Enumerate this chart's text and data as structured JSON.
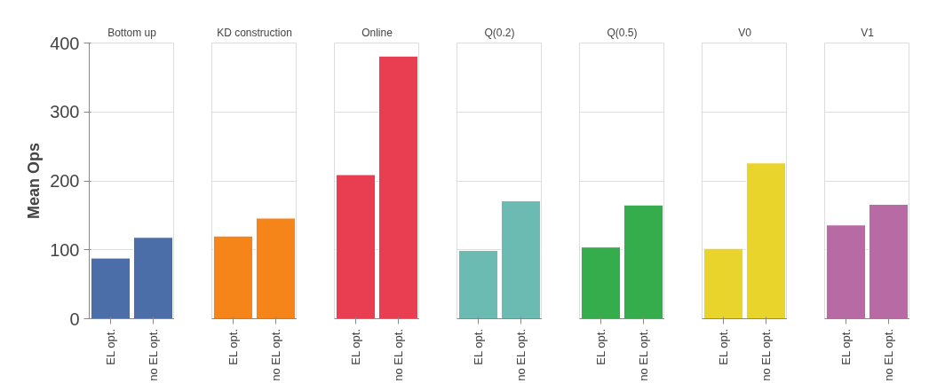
{
  "chart_data": [
    {
      "type": "bar",
      "title": "Bottom up",
      "ylabel": "Mean Ops",
      "categories": [
        "EL opt.",
        "no EL opt."
      ],
      "values": [
        88,
        118
      ],
      "color": "#4c6ea8",
      "ylim": [
        0,
        400
      ],
      "yticks": [
        0,
        100,
        200,
        300,
        400
      ],
      "grid": "y"
    },
    {
      "type": "bar",
      "title": "KD construction",
      "categories": [
        "EL opt.",
        "no EL opt."
      ],
      "values": [
        120,
        146
      ],
      "color": "#f58518",
      "ylim": [
        0,
        400
      ],
      "yticks": [
        0,
        100,
        200,
        300,
        400
      ],
      "grid": "y",
      "tick_labels": "x"
    },
    {
      "type": "bar",
      "title": "Online",
      "categories": [
        "EL opt.",
        "no EL opt."
      ],
      "values": [
        209,
        381
      ],
      "color": "#e93d52",
      "ylim": [
        0,
        400
      ],
      "yticks": [
        0,
        100,
        200,
        300,
        400
      ],
      "grid": "y",
      "tick_labels": "x"
    },
    {
      "type": "bar",
      "title": "Q(0.2)",
      "categories": [
        "EL opt.",
        "no EL opt."
      ],
      "values": [
        99,
        171
      ],
      "color": "#6cbbb3",
      "ylim": [
        0,
        400
      ],
      "yticks": [
        0,
        100,
        200,
        300,
        400
      ],
      "grid": "y",
      "tick_labels": "x"
    },
    {
      "type": "bar",
      "title": "Q(0.5)",
      "categories": [
        "EL opt.",
        "no EL opt."
      ],
      "values": [
        104,
        165
      ],
      "color": "#36ad4c",
      "ylim": [
        0,
        400
      ],
      "yticks": [
        0,
        100,
        200,
        300,
        400
      ],
      "grid": "y",
      "tick_labels": "x"
    },
    {
      "type": "bar",
      "title": "V0",
      "categories": [
        "EL opt.",
        "no EL opt."
      ],
      "values": [
        102,
        226
      ],
      "color": "#e8d42a",
      "ylim": [
        0,
        400
      ],
      "yticks": [
        0,
        100,
        200,
        300,
        400
      ],
      "grid": "y",
      "tick_labels": "x"
    },
    {
      "type": "bar",
      "title": "V1",
      "categories": [
        "EL opt.",
        "no EL opt."
      ],
      "values": [
        136,
        166
      ],
      "color": "#b76aa4",
      "ylim": [
        0,
        400
      ],
      "yticks": [
        0,
        100,
        200,
        300,
        400
      ],
      "grid": "y",
      "tick_labels": "x"
    }
  ]
}
